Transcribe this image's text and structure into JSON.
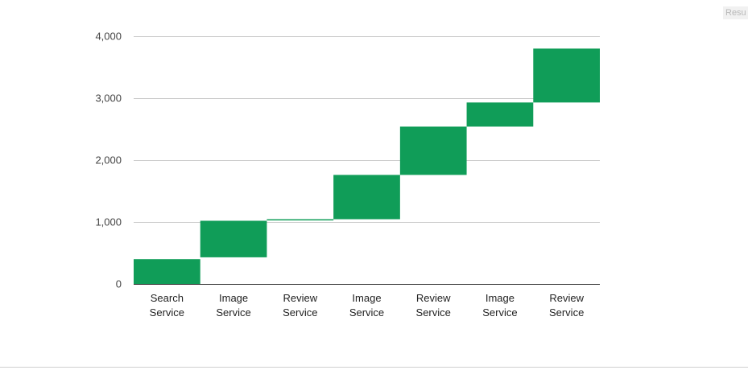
{
  "result_button": {
    "label": "Resu"
  },
  "chart_data": {
    "type": "waterfall",
    "categories": [
      "Search\nService",
      "Image\nService",
      "Review\nService",
      "Image\nService",
      "Review\nService",
      "Image\nService",
      "Review\nService"
    ],
    "bars": [
      {
        "start": 0,
        "end": 400
      },
      {
        "start": 430,
        "end": 1020
      },
      {
        "start": 1030,
        "end": 1045
      },
      {
        "start": 1045,
        "end": 1760
      },
      {
        "start": 1760,
        "end": 2540
      },
      {
        "start": 2540,
        "end": 2930
      },
      {
        "start": 2930,
        "end": 3800
      }
    ],
    "yticks": [
      0,
      1000,
      2000,
      3000,
      4000
    ],
    "yticks_labels": [
      "0",
      "1,000",
      "2,000",
      "3,000",
      "4,000"
    ],
    "ylim": [
      0,
      4000
    ],
    "grid": true,
    "bar_color": "#109d58",
    "title": "",
    "xlabel": "",
    "ylabel": ""
  }
}
